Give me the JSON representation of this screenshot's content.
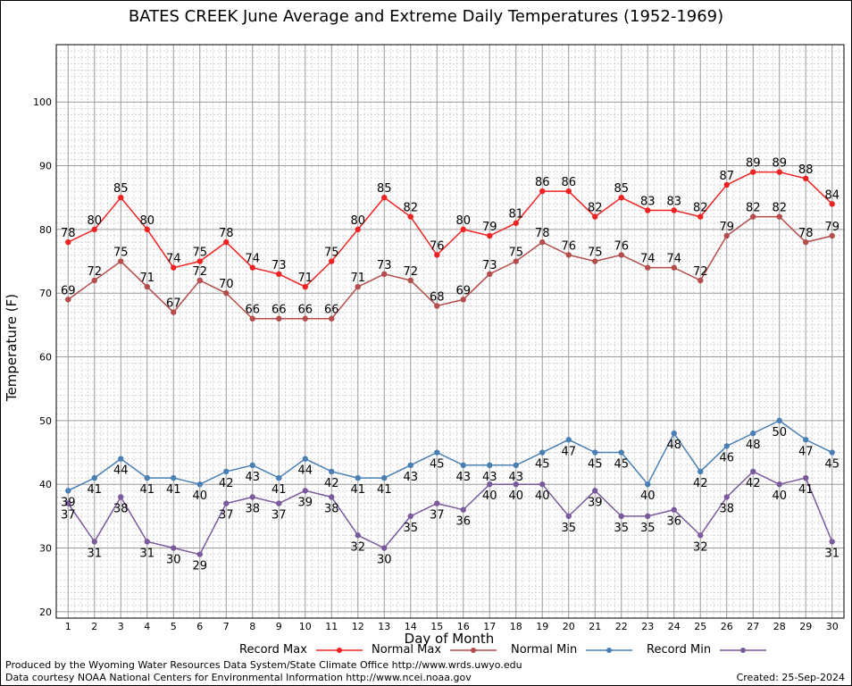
{
  "chart_data": {
    "type": "line",
    "title": "BATES CREEK June Average and Extreme Daily Temperatures (1952-1969)",
    "xlabel": "Day of Month",
    "ylabel": "Temperature (F)",
    "x": [
      1,
      2,
      3,
      4,
      5,
      6,
      7,
      8,
      9,
      10,
      11,
      12,
      13,
      14,
      15,
      16,
      17,
      18,
      19,
      20,
      21,
      22,
      23,
      24,
      25,
      26,
      27,
      28,
      29,
      30
    ],
    "xlim": [
      0.55,
      30.45
    ],
    "ylim": [
      19,
      109
    ],
    "yticks": [
      20,
      30,
      40,
      50,
      60,
      70,
      80,
      90,
      100
    ],
    "grid": true,
    "legend_position": "bottom",
    "series": [
      {
        "name": "Record Max",
        "color": "#ee2222",
        "values": [
          78,
          80,
          85,
          80,
          74,
          75,
          78,
          74,
          73,
          71,
          75,
          80,
          85,
          82,
          76,
          80,
          79,
          81,
          86,
          86,
          82,
          85,
          83,
          83,
          82,
          87,
          89,
          89,
          88,
          84
        ]
      },
      {
        "name": "Normal Max",
        "color": "#b44c4c",
        "values": [
          69,
          72,
          75,
          71,
          67,
          72,
          70,
          66,
          66,
          66,
          66,
          71,
          73,
          72,
          68,
          69,
          73,
          75,
          78,
          76,
          75,
          76,
          74,
          74,
          72,
          79,
          82,
          82,
          78,
          79
        ]
      },
      {
        "name": "Normal Min",
        "color": "#4a7fb4",
        "values": [
          39,
          41,
          44,
          41,
          41,
          40,
          42,
          43,
          41,
          44,
          42,
          41,
          41,
          43,
          45,
          43,
          43,
          43,
          45,
          47,
          45,
          45,
          40,
          48,
          42,
          46,
          48,
          50,
          47,
          45
        ]
      },
      {
        "name": "Record Min",
        "color": "#7a5a9c",
        "values": [
          37,
          31,
          38,
          31,
          30,
          29,
          37,
          38,
          37,
          39,
          38,
          32,
          30,
          35,
          37,
          36,
          40,
          40,
          40,
          35,
          39,
          35,
          35,
          36,
          32,
          38,
          42,
          40,
          41,
          31
        ]
      }
    ]
  },
  "footer": {
    "line1": "Produced by the Wyoming Water Resources Data System/State Climate Office http://www.wrds.uwyo.edu",
    "line2": "Data courtesy NOAA National Centers for Environmental Information http://www.ncei.noaa.gov",
    "created": "Created:  25-Sep-2024"
  }
}
